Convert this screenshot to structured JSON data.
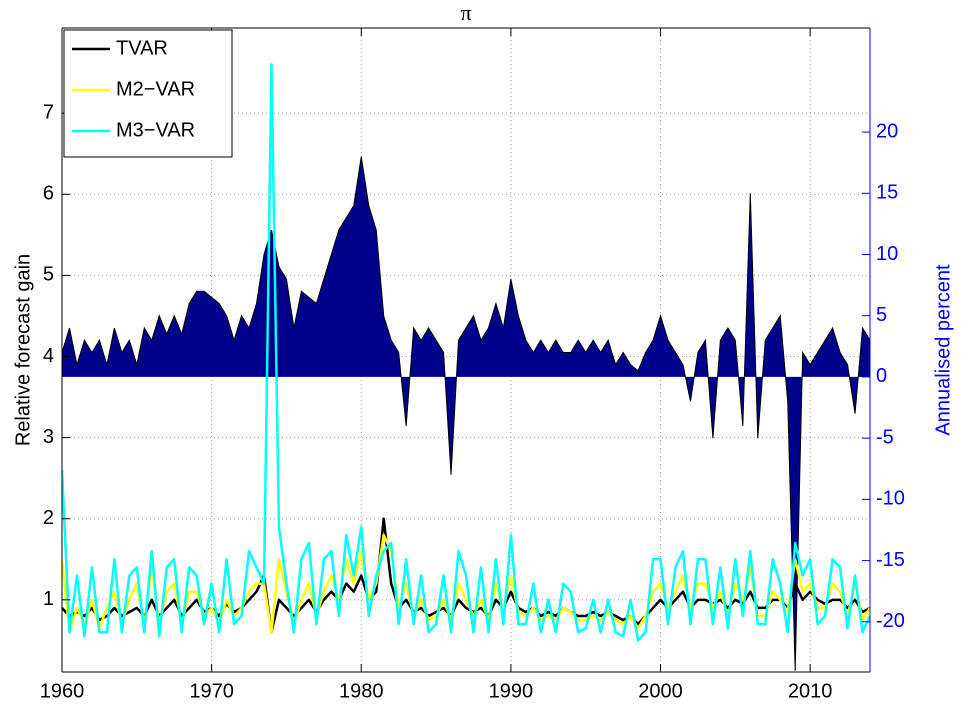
{
  "chart_data": {
    "type": "line",
    "title": "π",
    "ylabel": "Relative forecast gain",
    "y2label": "Annualised percent",
    "x": [
      1960,
      1960.5,
      1961,
      1961.5,
      1962,
      1962.5,
      1963,
      1963.5,
      1964,
      1964.5,
      1965,
      1965.5,
      1966,
      1966.5,
      1967,
      1967.5,
      1968,
      1968.5,
      1969,
      1969.5,
      1970,
      1970.5,
      1971,
      1971.5,
      1972,
      1972.5,
      1973,
      1973.5,
      1974,
      1974.5,
      1975,
      1975.5,
      1976,
      1976.5,
      1977,
      1977.5,
      1978,
      1978.5,
      1979,
      1979.5,
      1980,
      1980.5,
      1981,
      1981.5,
      1982,
      1982.5,
      1983,
      1983.5,
      1984,
      1984.5,
      1985,
      1985.5,
      1986,
      1986.5,
      1987,
      1987.5,
      1988,
      1988.5,
      1989,
      1989.5,
      1990,
      1990.5,
      1991,
      1991.5,
      1992,
      1992.5,
      1993,
      1993.5,
      1994,
      1994.5,
      1995,
      1995.5,
      1996,
      1996.5,
      1997,
      1997.5,
      1998,
      1998.5,
      1999,
      1999.5,
      2000,
      2000.5,
      2001,
      2001.5,
      2002,
      2002.5,
      2003,
      2003.5,
      2004,
      2004.5,
      2005,
      2005.5,
      2006,
      2006.5,
      2007,
      2007.5,
      2008,
      2008.5,
      2009,
      2009.5,
      2010,
      2010.5,
      2011,
      2011.5,
      2012,
      2012.5,
      2013,
      2013.5,
      2014
    ],
    "area": {
      "color": "#00008b",
      "edge": "#000000",
      "axis": "y2",
      "values": [
        2,
        4,
        1,
        3,
        2,
        3,
        1,
        4,
        2,
        3,
        1,
        4,
        3,
        5,
        3.5,
        5,
        3.5,
        6,
        7,
        7,
        6.5,
        6,
        5,
        3,
        5,
        4,
        6,
        10,
        12,
        9,
        8,
        4,
        7,
        6.5,
        6,
        8,
        10,
        12,
        13,
        14,
        18,
        14,
        12,
        5,
        3,
        2,
        -4,
        4,
        3,
        4,
        3,
        2,
        -8,
        3,
        4,
        5,
        3,
        4,
        6,
        4,
        8,
        5,
        3,
        2,
        3,
        2,
        3,
        2,
        2,
        3,
        2,
        3,
        2,
        3,
        1,
        2,
        1,
        0.5,
        2,
        3,
        5,
        3,
        2,
        1,
        -2,
        2,
        3,
        -5,
        3,
        4,
        3,
        -4,
        15,
        -5,
        3,
        4,
        5,
        -2,
        -24,
        2,
        1,
        2,
        3,
        4,
        2,
        1,
        -3,
        4,
        3
      ]
    },
    "series": [
      {
        "name": "TVAR",
        "color": "#000000",
        "values": [
          0.9,
          0.8,
          0.85,
          0.8,
          0.9,
          0.75,
          0.8,
          0.9,
          0.8,
          0.85,
          0.9,
          0.8,
          1.0,
          0.8,
          0.9,
          1.0,
          0.8,
          0.9,
          1.0,
          0.85,
          0.9,
          0.8,
          0.95,
          0.85,
          0.9,
          1.0,
          1.1,
          1.3,
          0.6,
          1.0,
          0.9,
          0.8,
          0.9,
          1.0,
          0.85,
          1.0,
          1.1,
          1.0,
          1.2,
          1.1,
          1.3,
          1.0,
          1.1,
          2.0,
          1.2,
          0.9,
          1.0,
          0.85,
          0.9,
          0.8,
          0.85,
          0.9,
          0.8,
          1.0,
          0.9,
          0.85,
          0.9,
          0.8,
          1.0,
          0.9,
          1.1,
          0.9,
          0.85,
          0.9,
          0.8,
          0.85,
          0.8,
          0.9,
          0.85,
          0.8,
          0.8,
          0.85,
          0.8,
          0.85,
          0.8,
          0.75,
          0.8,
          0.7,
          0.8,
          0.9,
          1.0,
          0.9,
          1.0,
          1.1,
          0.9,
          1.0,
          1.0,
          0.95,
          1.0,
          0.9,
          1.0,
          0.95,
          1.1,
          0.9,
          0.9,
          1.0,
          1.0,
          0.9,
          1.2,
          1.0,
          1.1,
          1.0,
          0.95,
          1.0,
          1.0,
          0.9,
          1.0,
          0.85,
          0.9
        ]
      },
      {
        "name": "M2−VAR",
        "color": "#ffff00",
        "values": [
          1.5,
          0.6,
          0.9,
          0.7,
          1.0,
          0.65,
          0.9,
          1.1,
          0.7,
          1.0,
          1.2,
          0.7,
          1.4,
          0.7,
          1.1,
          1.2,
          0.7,
          1.1,
          1.1,
          0.8,
          0.9,
          0.7,
          1.0,
          0.8,
          0.9,
          1.1,
          1.2,
          1.2,
          0.6,
          1.5,
          1.1,
          0.7,
          1.0,
          1.2,
          0.8,
          1.1,
          1.3,
          1.0,
          1.5,
          1.2,
          1.6,
          1.0,
          1.2,
          1.8,
          1.6,
          0.9,
          1.2,
          0.8,
          1.0,
          0.75,
          0.8,
          1.0,
          0.75,
          1.2,
          1.0,
          0.8,
          1.0,
          0.75,
          1.2,
          0.9,
          1.3,
          0.85,
          0.8,
          0.9,
          0.75,
          0.8,
          0.75,
          0.9,
          0.85,
          0.75,
          0.75,
          0.8,
          0.75,
          0.85,
          0.75,
          0.7,
          0.8,
          0.65,
          0.8,
          1.1,
          1.2,
          0.9,
          1.1,
          1.3,
          0.9,
          1.2,
          1.2,
          0.9,
          1.1,
          0.8,
          1.2,
          1.0,
          1.4,
          0.8,
          0.8,
          1.1,
          1.0,
          0.85,
          1.5,
          1.1,
          1.2,
          0.9,
          0.9,
          1.2,
          1.1,
          0.8,
          1.2,
          0.75,
          0.9
        ]
      },
      {
        "name": "M3−VAR",
        "color": "#00ffff",
        "values": [
          2.6,
          0.6,
          1.3,
          0.55,
          1.4,
          0.6,
          0.6,
          1.5,
          0.6,
          1.3,
          1.4,
          0.6,
          1.6,
          0.55,
          1.4,
          1.5,
          0.6,
          1.4,
          1.3,
          0.7,
          1.2,
          0.6,
          1.5,
          0.7,
          0.8,
          1.6,
          1.4,
          1.2,
          7.6,
          1.9,
          1.2,
          0.6,
          1.5,
          1.7,
          0.7,
          1.5,
          1.6,
          0.8,
          1.8,
          1.3,
          1.9,
          0.8,
          1.3,
          1.6,
          1.7,
          0.7,
          1.5,
          0.7,
          1.3,
          0.6,
          0.7,
          1.3,
          0.6,
          1.6,
          1.3,
          0.6,
          1.4,
          0.6,
          1.5,
          0.7,
          1.8,
          0.7,
          0.7,
          1.2,
          0.6,
          1.0,
          0.6,
          1.2,
          1.1,
          0.6,
          0.65,
          1.0,
          0.6,
          1.0,
          0.6,
          0.55,
          1.0,
          0.5,
          0.6,
          1.5,
          1.5,
          0.7,
          1.4,
          1.6,
          0.7,
          1.5,
          1.5,
          0.7,
          1.4,
          0.65,
          1.5,
          0.8,
          1.6,
          0.7,
          0.7,
          1.5,
          1.2,
          0.6,
          1.7,
          1.3,
          1.5,
          0.7,
          0.8,
          1.5,
          1.4,
          0.65,
          1.3,
          0.6,
          0.8
        ]
      }
    ],
    "xlim": [
      1960,
      2014
    ],
    "xticks": [
      1960,
      1970,
      1980,
      1990,
      2000,
      2010
    ],
    "ylim": [
      0.11,
      8.05
    ],
    "yticks": [
      1,
      2,
      3,
      4,
      5,
      6,
      7
    ],
    "y2lim": [
      -24.1,
      28.5
    ],
    "y2ticks": [
      -20,
      -15,
      -10,
      -5,
      0,
      5,
      10,
      15,
      20
    ],
    "y2color": "#0000ff",
    "grid": true,
    "legend": "upper left"
  }
}
